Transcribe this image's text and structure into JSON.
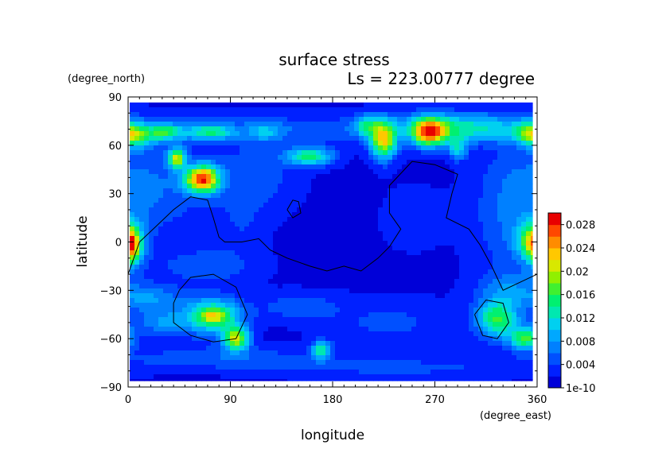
{
  "chart_data": {
    "type": "heatmap",
    "title": "surface stress",
    "subtitle": "Ls = 223.00777 degree",
    "xlabel": "longitude",
    "ylabel": "latitude",
    "xunit": "(degree_east)",
    "yunit": "(degree_north)",
    "xlim": [
      0,
      360
    ],
    "ylim": [
      -90,
      90
    ],
    "x_ticks": [
      0,
      90,
      180,
      270,
      360
    ],
    "y_ticks": [
      -90,
      -60,
      -30,
      0,
      30,
      60,
      90
    ],
    "x_tick_labels": [
      "0",
      "90",
      "180",
      "270",
      "360"
    ],
    "y_tick_labels": [
      "−90",
      "−60",
      "−30",
      "0",
      "30",
      "60",
      "90"
    ],
    "colorbar": {
      "tick_labels": [
        "1e-10",
        "0.004",
        "0.008",
        "0.012",
        "0.016",
        "0.02",
        "0.024",
        "0.028"
      ],
      "tick_values": [
        0,
        0.004,
        0.008,
        0.012,
        0.016,
        0.02,
        0.024,
        0.028
      ],
      "vmin": 0,
      "vmax": 0.03,
      "levels": 15,
      "colors": [
        "#0000d8",
        "#0020ff",
        "#0050ff",
        "#0080ff",
        "#00a8ff",
        "#00d0f0",
        "#00e8b0",
        "#00f070",
        "#40f030",
        "#90f000",
        "#d8e800",
        "#ffc800",
        "#ff8c00",
        "#ff4800",
        "#e80000"
      ]
    },
    "field": {
      "background": 0.0015,
      "blobs": [
        {
          "lon": 130,
          "lat": 70,
          "slon": 180,
          "slat": 6,
          "v": 0.004
        },
        {
          "lon": 30,
          "lat": 68,
          "slon": 30,
          "slat": 4,
          "v": 0.004
        },
        {
          "lon": 10,
          "lat": 65,
          "slon": 10,
          "slat": 5,
          "v": 0.007
        },
        {
          "lon": 33,
          "lat": 68,
          "slon": 8,
          "slat": 3,
          "v": 0.007
        },
        {
          "lon": 75,
          "lat": 68,
          "slon": 12,
          "slat": 3,
          "v": 0.008
        },
        {
          "lon": 120,
          "lat": 68,
          "slon": 10,
          "slat": 4,
          "v": 0.005
        },
        {
          "lon": 225,
          "lat": 63,
          "slon": 8,
          "slat": 8,
          "v": 0.02
        },
        {
          "lon": 210,
          "lat": 72,
          "slon": 8,
          "slat": 5,
          "v": 0.008
        },
        {
          "lon": 265,
          "lat": 68,
          "slon": 11,
          "slat": 6,
          "v": 0.024
        },
        {
          "lon": 303,
          "lat": 68,
          "slon": 22,
          "slat": 5,
          "v": 0.006
        },
        {
          "lon": 290,
          "lat": 75,
          "slon": 40,
          "slat": 5,
          "v": 0.005
        },
        {
          "lon": 355,
          "lat": 67,
          "slon": 10,
          "slat": 5,
          "v": 0.012
        },
        {
          "lon": 43,
          "lat": 52,
          "slon": 5,
          "slat": 4,
          "v": 0.018
        },
        {
          "lon": 68,
          "lat": 39,
          "slon": 9,
          "slat": 6,
          "v": 0.021
        },
        {
          "lon": 57,
          "lat": 39,
          "slon": 8,
          "slat": 5,
          "v": 0.008
        },
        {
          "lon": 160,
          "lat": 53,
          "slon": 15,
          "slat": 4,
          "v": 0.013
        },
        {
          "lon": 290,
          "lat": 58,
          "slon": 6,
          "slat": 5,
          "v": 0.009
        },
        {
          "lon": 30,
          "lat": 35,
          "slon": 30,
          "slat": 20,
          "v": 0.004
        },
        {
          "lon": 110,
          "lat": 40,
          "slon": 25,
          "slat": 15,
          "v": 0.004
        },
        {
          "lon": 340,
          "lat": 20,
          "slon": 25,
          "slat": 30,
          "v": 0.005
        },
        {
          "lon": 358,
          "lat": 0,
          "slon": 10,
          "slat": 8,
          "v": 0.016
        },
        {
          "lon": 2,
          "lat": -3,
          "slon": 6,
          "slat": 8,
          "v": 0.013
        },
        {
          "lon": 70,
          "lat": -15,
          "slon": 30,
          "slat": 8,
          "v": 0.004
        },
        {
          "lon": 20,
          "lat": -35,
          "slon": 20,
          "slat": 6,
          "v": 0.006
        },
        {
          "lon": 75,
          "lat": -46,
          "slon": 18,
          "slat": 8,
          "v": 0.014
        },
        {
          "lon": 75,
          "lat": -46,
          "slon": 8,
          "slat": 3,
          "v": 0.008
        },
        {
          "lon": 95,
          "lat": -60,
          "slon": 8,
          "slat": 5,
          "v": 0.018
        },
        {
          "lon": 30,
          "lat": -50,
          "slon": 18,
          "slat": 6,
          "v": 0.006
        },
        {
          "lon": 80,
          "lat": -72,
          "slon": 60,
          "slat": 5,
          "v": 0.004
        },
        {
          "lon": 170,
          "lat": -67,
          "slon": 6,
          "slat": 4,
          "v": 0.012
        },
        {
          "lon": 150,
          "lat": -40,
          "slon": 25,
          "slat": 6,
          "v": 0.004
        },
        {
          "lon": 230,
          "lat": -50,
          "slon": 40,
          "slat": 10,
          "v": 0.003
        },
        {
          "lon": 325,
          "lat": -48,
          "slon": 13,
          "slat": 8,
          "v": 0.014
        },
        {
          "lon": 350,
          "lat": -60,
          "slon": 10,
          "slat": 5,
          "v": 0.014
        },
        {
          "lon": 335,
          "lat": -30,
          "slon": 20,
          "slat": 8,
          "v": 0.005
        },
        {
          "lon": 240,
          "lat": -78,
          "slon": 80,
          "slat": 5,
          "v": 0.003
        },
        {
          "lon": 100,
          "lat": 10,
          "slon": 15,
          "slat": 12,
          "v": 0.002
        },
        {
          "lon": 250,
          "lat": 15,
          "slon": 20,
          "slat": 15,
          "v": 0.0015
        }
      ]
    },
    "contours": [
      [
        [
          0,
          -20
        ],
        [
          10,
          0
        ],
        [
          25,
          10
        ],
        [
          40,
          20
        ],
        [
          55,
          28
        ],
        [
          70,
          26
        ],
        [
          75,
          15
        ],
        [
          80,
          3
        ],
        [
          85,
          0
        ],
        [
          100,
          0
        ],
        [
          115,
          2
        ],
        [
          125,
          -5
        ],
        [
          140,
          -10
        ],
        [
          160,
          -15
        ],
        [
          175,
          -18
        ],
        [
          190,
          -15
        ],
        [
          205,
          -18
        ],
        [
          220,
          -10
        ],
        [
          230,
          -3
        ],
        [
          240,
          8
        ],
        [
          230,
          18
        ],
        [
          230,
          35
        ],
        [
          250,
          50
        ],
        [
          270,
          48
        ],
        [
          290,
          42
        ],
        [
          285,
          30
        ],
        [
          280,
          15
        ],
        [
          300,
          8
        ],
        [
          310,
          -2
        ],
        [
          320,
          -15
        ],
        [
          330,
          -30
        ],
        [
          345,
          -25
        ],
        [
          360,
          -20
        ]
      ],
      [
        [
          140,
          20
        ],
        [
          145,
          26
        ],
        [
          150,
          25
        ],
        [
          152,
          18
        ],
        [
          145,
          15
        ],
        [
          140,
          20
        ]
      ],
      [
        [
          45,
          -30
        ],
        [
          55,
          -22
        ],
        [
          75,
          -20
        ],
        [
          95,
          -28
        ],
        [
          105,
          -45
        ],
        [
          95,
          -60
        ],
        [
          75,
          -62
        ],
        [
          55,
          -58
        ],
        [
          40,
          -50
        ],
        [
          40,
          -38
        ],
        [
          45,
          -30
        ]
      ],
      [
        [
          305,
          -45
        ],
        [
          315,
          -36
        ],
        [
          330,
          -38
        ],
        [
          335,
          -50
        ],
        [
          325,
          -60
        ],
        [
          312,
          -58
        ],
        [
          305,
          -45
        ]
      ]
    ]
  }
}
